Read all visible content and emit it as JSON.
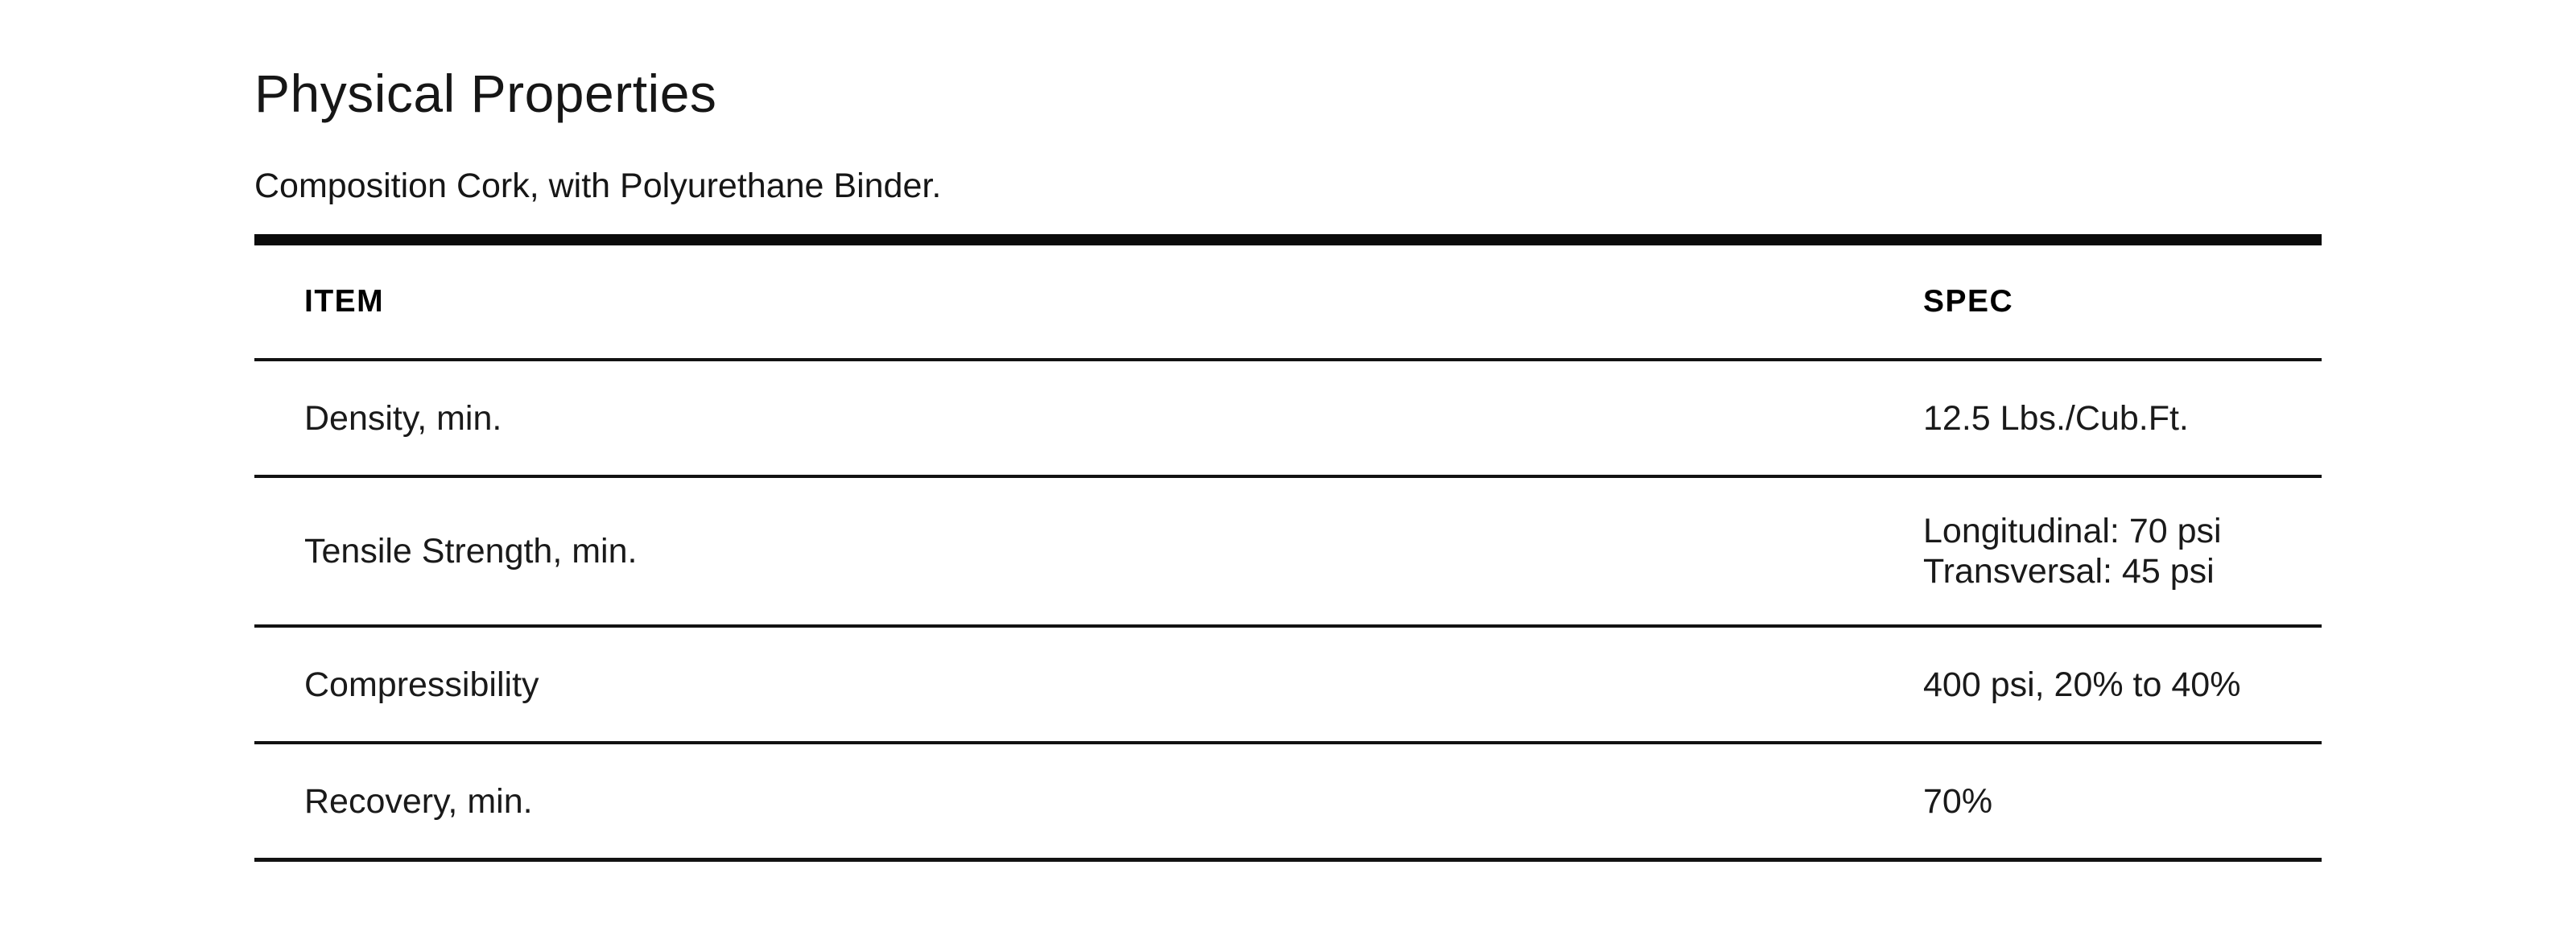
{
  "page": {
    "title": "Physical Properties",
    "subtitle": "Composition Cork, with Polyurethane Binder."
  },
  "table": {
    "columns": {
      "item": "ITEM",
      "spec": "SPEC"
    },
    "rows": [
      {
        "item": "Density, min.",
        "spec": [
          "12.5 Lbs./Cub.Ft."
        ]
      },
      {
        "item": "Tensile Strength, min.",
        "spec": [
          "Longitudinal: 70 psi",
          "Transversal: 45 psi"
        ]
      },
      {
        "item": "Compressibility",
        "spec": [
          "400 psi, 20% to 40%"
        ]
      },
      {
        "item": "Recovery, min.",
        "spec": [
          "70%"
        ]
      }
    ]
  },
  "colors": {
    "background": "#ffffff",
    "text": "#161616",
    "heading": "#000000",
    "border": "#0b0b0b"
  }
}
